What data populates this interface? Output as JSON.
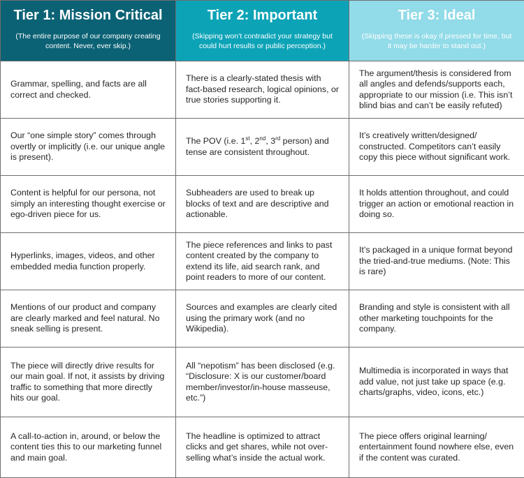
{
  "columns": [
    {
      "title": "Tier 1: Mission Critical",
      "subtitle": "(The entire purpose of our company creating content. Never, ever skip.)",
      "color": "#0c6275"
    },
    {
      "title": "Tier 2: Important",
      "subtitle": "(Skipping won’t contradict your strategy but could hurt results or public perception.)",
      "color": "#0da3b7"
    },
    {
      "title": "Tier 3: Ideal",
      "subtitle": "(Skipping these is okay if pressed for time, but it may be harder to stand out.)",
      "color": "#92dbe8"
    }
  ],
  "rows": [
    [
      "Grammar, spelling, and facts are all correct and checked.",
      "There is a clearly-stated thesis with fact-based research, logical opinions, or true stories supporting it.",
      "The argument/thesis is considered from all angles and defends/supports each, appropriate to our mission (i.e. This isn’t blind bias and can’t be easily refuted)"
    ],
    [
      "Our “one simple story” comes through overtly or implicitly (i.e. our unique angle is present).",
      {
        "pov_a": "The POV (i.e. 1",
        "pov_sup1": "st",
        "pov_b": ", 2",
        "pov_sup2": "nd",
        "pov_c": ", 3",
        "pov_sup3": "rd",
        "pov_d": " person) and tense are consistent throughout."
      },
      "It’s creatively written/designed/ constructed. Competitors can’t easily copy this piece without significant work."
    ],
    [
      "Content is helpful for our persona, not simply an interesting thought exercise or ego-driven piece for us.",
      "Subheaders are used to break up blocks of text and are descriptive and actionable.",
      "It holds attention throughout, and could trigger an action or emotional reaction in doing so."
    ],
    [
      "Hyperlinks, images, videos, and other embedded media function properly.",
      "The piece references and links to past content created by the company to extend its life, aid search rank, and point readers to more of our content.",
      "It’s packaged in a unique format beyond the tried-and-true mediums. (Note: This is rare)"
    ],
    [
      "Mentions of our product and company are clearly marked and feel natural. No sneak selling is present.",
      "Sources and examples are clearly cited using the primary work (and no Wikipedia).",
      "Branding and style is consistent with all other marketing touchpoints for the company."
    ],
    [
      "The piece will directly drive results for our main goal. If not, it assists by driving traffic to something that more directly hits our goal.",
      "All “nepotism” has been disclosed (e.g. “Disclosure: X is our customer/board member/investor/in-house masseuse, etc.”)",
      "Multimedia is incorporated in ways that add value, not just take up space (e.g. charts/graphs, video, icons, etc.)"
    ],
    [
      "A call-to-action in, around, or below the content ties this to our marketing funnel and main goal.",
      "The headline is optimized to attract clicks and get shares, while not over-selling what’s inside the actual work.",
      "The piece offers original learning/ entertainment found nowhere else, even if the content was curated."
    ]
  ]
}
